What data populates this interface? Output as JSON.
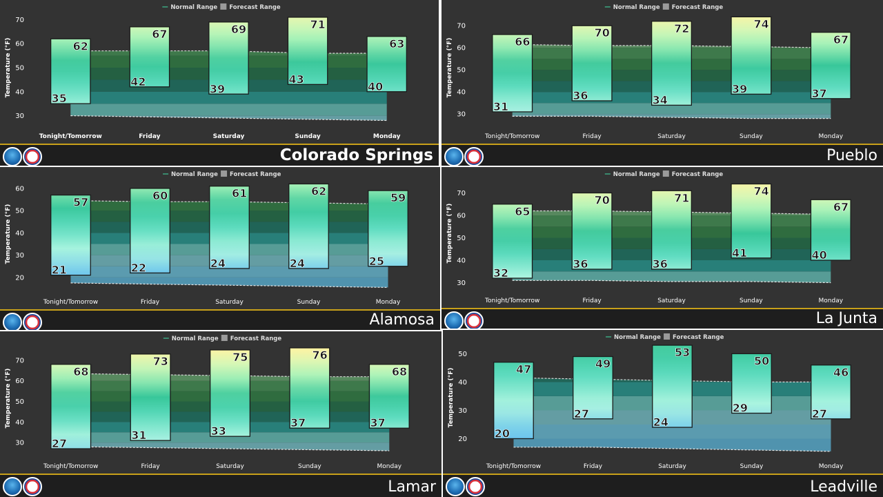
{
  "legend": {
    "normal": "Normal Range",
    "forecast": "Forecast Range"
  },
  "ylabel": "Temperature (°F)",
  "days": [
    "Tonight/Tomorrow",
    "Friday",
    "Saturday",
    "Sunday",
    "Monday"
  ],
  "colors": {
    "panel_bg": "#333333",
    "footer_bg": "#1e1e1e",
    "footer_line": "#c9a11a"
  },
  "chart_data": [
    {
      "type": "bar",
      "city": "Colorado Springs",
      "categories": [
        "Tonight/Tomorrow",
        "Friday",
        "Saturday",
        "Sunday",
        "Monday"
      ],
      "series": [
        {
          "name": "Forecast Range",
          "lows": [
            35,
            42,
            39,
            43,
            40
          ],
          "highs": [
            62,
            67,
            69,
            71,
            63
          ]
        }
      ],
      "normal_high": [
        57,
        57,
        57,
        56,
        56
      ],
      "normal_low": [
        30,
        29.5,
        29,
        28.5,
        28
      ],
      "ylim": [
        27,
        73
      ],
      "yticks": [
        30,
        40,
        50,
        60,
        70
      ]
    },
    {
      "type": "bar",
      "city": "Pueblo",
      "categories": [
        "Tonight/Tomorrow",
        "Friday",
        "Saturday",
        "Sunday",
        "Monday"
      ],
      "series": [
        {
          "name": "Forecast Range",
          "lows": [
            31,
            36,
            34,
            39,
            37
          ],
          "highs": [
            66,
            70,
            72,
            74,
            67
          ]
        }
      ],
      "normal_high": [
        61.5,
        61,
        61,
        60.5,
        60
      ],
      "normal_low": [
        29,
        29,
        28.5,
        28,
        28
      ],
      "ylim": [
        26,
        76
      ],
      "yticks": [
        30,
        40,
        50,
        60,
        70
      ]
    },
    {
      "type": "bar",
      "city": "Alamosa",
      "categories": [
        "Tonight/Tomorrow",
        "Friday",
        "Saturday",
        "Sunday",
        "Monday"
      ],
      "series": [
        {
          "name": "Forecast Range",
          "lows": [
            21,
            22,
            24,
            24,
            25
          ],
          "highs": [
            57,
            60,
            61,
            62,
            59
          ]
        }
      ],
      "normal_high": [
        54.5,
        54,
        54,
        53.5,
        53
      ],
      "normal_low": [
        17.5,
        17,
        16.5,
        16,
        15.5
      ],
      "ylim": [
        15,
        64
      ],
      "yticks": [
        20,
        30,
        40,
        50,
        60
      ]
    },
    {
      "type": "bar",
      "city": "La Junta",
      "categories": [
        "Tonight/Tomorrow",
        "Friday",
        "Saturday",
        "Sunday",
        "Monday"
      ],
      "series": [
        {
          "name": "Forecast Range",
          "lows": [
            32,
            36,
            36,
            41,
            40
          ],
          "highs": [
            65,
            70,
            71,
            74,
            67
          ]
        }
      ],
      "normal_high": [
        62,
        62,
        61.5,
        61,
        60.5
      ],
      "normal_low": [
        31,
        31,
        30.5,
        30.5,
        30
      ],
      "ylim": [
        28,
        76
      ],
      "yticks": [
        30,
        40,
        50,
        60,
        70
      ]
    },
    {
      "type": "bar",
      "city": "Lamar",
      "categories": [
        "Tonight/Tomorrow",
        "Friday",
        "Saturday",
        "Sunday",
        "Monday"
      ],
      "series": [
        {
          "name": "Forecast Range",
          "lows": [
            27,
            31,
            33,
            37,
            37
          ],
          "highs": [
            68,
            73,
            75,
            76,
            68
          ]
        }
      ],
      "normal_high": [
        63.5,
        63,
        62.5,
        62,
        62
      ],
      "normal_low": [
        28,
        27.5,
        27,
        26.5,
        26
      ],
      "ylim": [
        25,
        78
      ],
      "yticks": [
        30,
        40,
        50,
        60,
        70
      ]
    },
    {
      "type": "bar",
      "city": "Leadville",
      "categories": [
        "Tonight/Tomorrow",
        "Friday",
        "Saturday",
        "Sunday",
        "Monday"
      ],
      "series": [
        {
          "name": "Forecast Range",
          "lows": [
            20,
            27,
            24,
            29,
            27
          ],
          "highs": [
            47,
            49,
            53,
            50,
            46
          ]
        }
      ],
      "normal_high": [
        41.5,
        41,
        40.5,
        40,
        40
      ],
      "normal_low": [
        17,
        17,
        16.5,
        16,
        15.5
      ],
      "ylim": [
        15,
        54
      ],
      "yticks": [
        20,
        30,
        40,
        50
      ]
    }
  ]
}
